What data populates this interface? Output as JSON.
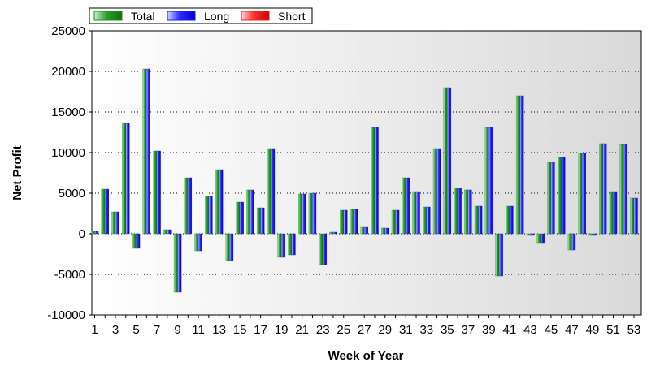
{
  "chart_data": {
    "type": "bar",
    "xlabel": "Week of Year",
    "ylabel": "Net Profit",
    "ylim": [
      -10000,
      25000
    ],
    "yticks": [
      25000,
      20000,
      15000,
      10000,
      5000,
      0,
      -5000,
      -10000
    ],
    "xtick_labels": [
      "1",
      "3",
      "5",
      "7",
      "9",
      "11",
      "13",
      "15",
      "17",
      "19",
      "21",
      "23",
      "25",
      "27",
      "29",
      "31",
      "33",
      "35",
      "37",
      "39",
      "41",
      "43",
      "45",
      "47",
      "49",
      "51",
      "53"
    ],
    "grid": true,
    "legend_position": "top-left",
    "categories": [
      "1",
      "2",
      "3",
      "4",
      "5",
      "6",
      "7",
      "8",
      "9",
      "10",
      "11",
      "12",
      "13",
      "14",
      "15",
      "16",
      "17",
      "18",
      "19",
      "20",
      "21",
      "22",
      "23",
      "24",
      "25",
      "26",
      "27",
      "28",
      "29",
      "30",
      "31",
      "32",
      "33",
      "34",
      "35",
      "36",
      "37",
      "38",
      "39",
      "40",
      "41",
      "42",
      "43",
      "44",
      "45",
      "46",
      "47",
      "48",
      "49",
      "50",
      "51",
      "52",
      "53"
    ],
    "series": [
      {
        "name": "Total",
        "color": "#1e8a1e",
        "values": [
          300,
          5500,
          2700,
          13600,
          -1800,
          20300,
          10200,
          500,
          -7200,
          6900,
          -2100,
          4600,
          7900,
          -3300,
          3900,
          5400,
          3200,
          10500,
          -2900,
          -2600,
          4900,
          5000,
          -3800,
          200,
          2900,
          3000,
          800,
          13100,
          700,
          2900,
          6900,
          5200,
          3300,
          10500,
          18000,
          5600,
          5400,
          3400,
          13100,
          -5200,
          3400,
          17000,
          -200,
          -1100,
          8800,
          9400,
          -2000,
          9900,
          -200,
          11100,
          5200,
          11000,
          4400
        ]
      },
      {
        "name": "Long",
        "color": "#1a1aee",
        "values": [
          300,
          5500,
          2700,
          13600,
          -1800,
          20300,
          10200,
          500,
          -7200,
          6900,
          -2100,
          4600,
          7900,
          -3300,
          3900,
          5400,
          3200,
          10500,
          -2900,
          -2600,
          4900,
          5000,
          -3800,
          200,
          2900,
          3000,
          800,
          13100,
          700,
          2900,
          6900,
          5200,
          3300,
          10500,
          18000,
          5600,
          5400,
          3400,
          13100,
          -5200,
          3400,
          17000,
          -200,
          -1100,
          8800,
          9400,
          -2000,
          9900,
          -200,
          11100,
          5200,
          11000,
          4400
        ]
      },
      {
        "name": "Short",
        "color": "#ee2222",
        "values": [
          0,
          0,
          0,
          0,
          0,
          0,
          0,
          0,
          0,
          0,
          0,
          0,
          0,
          0,
          0,
          0,
          0,
          0,
          0,
          0,
          0,
          0,
          0,
          0,
          0,
          0,
          0,
          0,
          0,
          0,
          0,
          0,
          0,
          0,
          0,
          0,
          0,
          0,
          0,
          0,
          0,
          0,
          0,
          0,
          0,
          0,
          0,
          0,
          0,
          0,
          0,
          0,
          0
        ]
      }
    ]
  }
}
